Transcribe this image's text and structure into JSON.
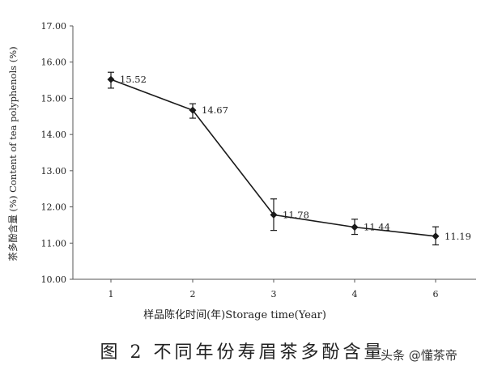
{
  "chart_data": {
    "type": "line",
    "categories": [
      "1",
      "2",
      "3",
      "4",
      "6"
    ],
    "values": [
      15.52,
      14.67,
      11.78,
      11.44,
      11.19
    ],
    "error_low": [
      15.28,
      14.45,
      11.35,
      11.24,
      10.95
    ],
    "error_high": [
      15.72,
      14.85,
      12.22,
      11.66,
      11.45
    ],
    "point_labels": [
      "15.52",
      "14.67",
      "11.78",
      "11.44",
      "11.19"
    ],
    "ylim": [
      10.0,
      17.0
    ],
    "yticks": [
      "10.00",
      "11.00",
      "12.00",
      "13.00",
      "14.00",
      "15.00",
      "16.00",
      "17.00"
    ],
    "ylabel": "茶多酚含量 (%) Content of tea polyphenols (%)",
    "xlabel": "样品陈化时间(年)Storage time(Year)",
    "grid": false,
    "legend": "none"
  },
  "caption": "图 2  不同年份寿眉茶多酚含量",
  "watermark": "头条 @懂茶帝",
  "colors": {
    "line": "#1a1a1a",
    "axis": "#555555"
  }
}
